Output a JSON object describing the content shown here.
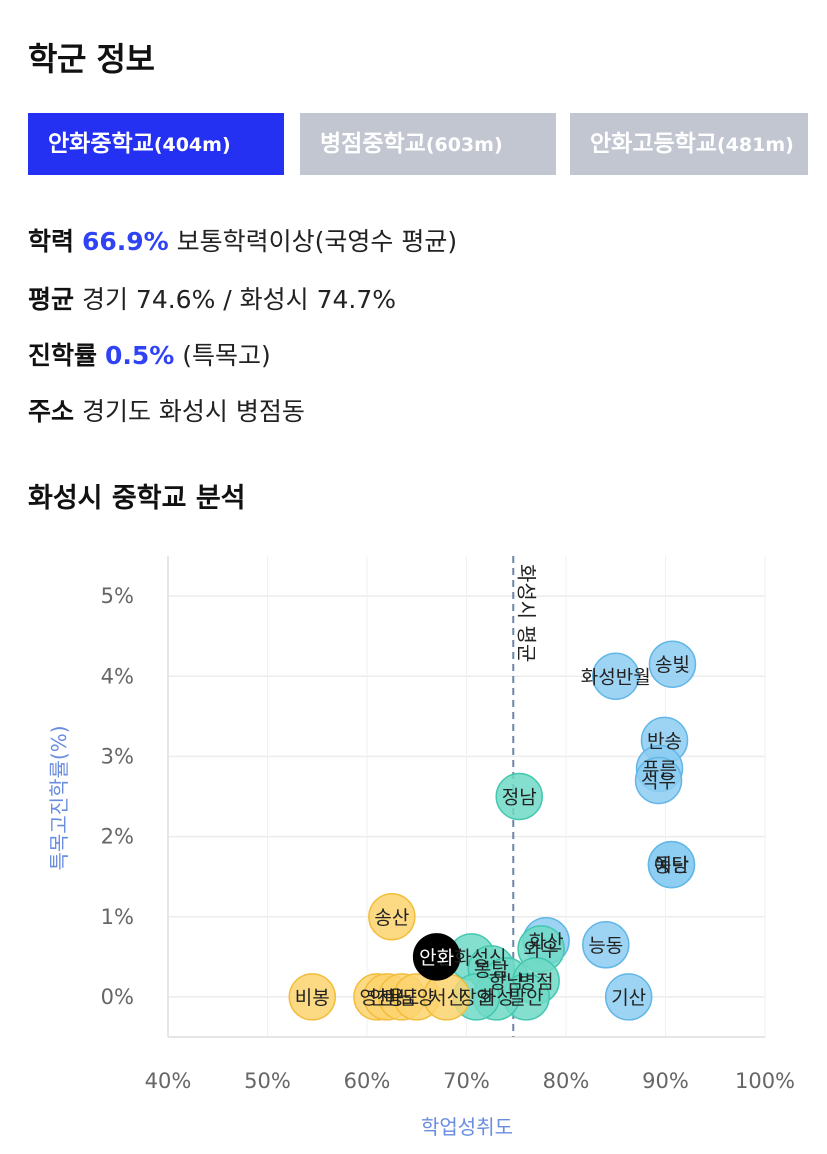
{
  "header": {
    "title": "학군 정보"
  },
  "tabs": [
    {
      "name": "안화중학교",
      "distance": "(404m)",
      "active": true
    },
    {
      "name": "병점중학교",
      "distance": "(603m)",
      "active": false
    },
    {
      "name": "안화고등학교",
      "distance": "(481m)",
      "active": false
    }
  ],
  "info": {
    "academic": {
      "label": "학력",
      "value": "66.9%",
      "suffix": "보통학력이상(국영수 평균)"
    },
    "average": {
      "label": "평균",
      "text": "경기 74.6% / 화성시 74.7%"
    },
    "advancement": {
      "label": "진학률",
      "value": "0.5%",
      "suffix": "(특목고)"
    },
    "address": {
      "label": "주소",
      "text": "경기도 화성시 병점동"
    }
  },
  "analysis": {
    "title": "화성시 중학교 분석"
  },
  "colors": {
    "accent": "#2430f2",
    "tab_inactive": "#c2c6d1",
    "highlight_text": "#2f43f5",
    "bubble_blue": "#8ccdf2",
    "bubble_teal": "#6fd9c6",
    "bubble_yellow": "#fcd46e",
    "bubble_selected": "#000000",
    "avg_line": "#6b86a6"
  },
  "chart_data": {
    "type": "scatter",
    "xlabel": "학업성취도",
    "ylabel": "특목고진학률(%)",
    "xlim": [
      40,
      100
    ],
    "ylim": [
      -0.5,
      5.5
    ],
    "xticks": [
      "40%",
      "50%",
      "60%",
      "70%",
      "80%",
      "90%",
      "100%"
    ],
    "yticks": [
      "0%",
      "1%",
      "2%",
      "3%",
      "4%",
      "5%"
    ],
    "grid": true,
    "reference_line": {
      "axis": "x",
      "value": 74.7,
      "label": "화성시 평균"
    },
    "points": [
      {
        "label": "송빛",
        "x": 90.7,
        "y": 4.15,
        "group": "blue"
      },
      {
        "label": "화성반월",
        "x": 85.0,
        "y": 4.0,
        "group": "blue"
      },
      {
        "label": "반송",
        "x": 89.9,
        "y": 3.2,
        "group": "blue"
      },
      {
        "label": "푸른",
        "x": 89.4,
        "y": 2.85,
        "group": "blue"
      },
      {
        "label": "석우",
        "x": 89.3,
        "y": 2.7,
        "group": "blue"
      },
      {
        "label": "동탄",
        "x": 90.6,
        "y": 1.65,
        "group": "blue"
      },
      {
        "label": "예당",
        "x": 90.6,
        "y": 1.65,
        "group": "blue"
      },
      {
        "label": "능동",
        "x": 84.0,
        "y": 0.65,
        "group": "blue"
      },
      {
        "label": "기산",
        "x": 86.3,
        "y": 0.0,
        "group": "blue"
      },
      {
        "label": "화산",
        "x": 78.0,
        "y": 0.7,
        "group": "blue"
      },
      {
        "label": "정남",
        "x": 75.3,
        "y": 2.5,
        "group": "teal"
      },
      {
        "label": "안화",
        "x": 67.0,
        "y": 0.5,
        "group": "selected"
      },
      {
        "label": "안화성신",
        "x": 70.5,
        "y": 0.5,
        "group": "teal"
      },
      {
        "label": "와우",
        "x": 77.5,
        "y": 0.6,
        "group": "teal"
      },
      {
        "label": "봉담",
        "x": 72.5,
        "y": 0.35,
        "group": "teal"
      },
      {
        "label": "향남",
        "x": 74.0,
        "y": 0.2,
        "group": "teal"
      },
      {
        "label": "병점",
        "x": 77.0,
        "y": 0.2,
        "group": "teal"
      },
      {
        "label": "발안",
        "x": 76.0,
        "y": 0.0,
        "group": "teal"
      },
      {
        "label": "화성",
        "x": 73.0,
        "y": 0.0,
        "group": "teal"
      },
      {
        "label": "장안",
        "x": 71.0,
        "y": 0.0,
        "group": "teal"
      },
      {
        "label": "송산",
        "x": 62.5,
        "y": 1.0,
        "group": "yellow"
      },
      {
        "label": "비봉",
        "x": 54.5,
        "y": 0.0,
        "group": "yellow"
      },
      {
        "label": "영천",
        "x": 61.0,
        "y": 0.0,
        "group": "yellow"
      },
      {
        "label": "안용",
        "x": 62.0,
        "y": 0.0,
        "group": "yellow"
      },
      {
        "label": "마도",
        "x": 63.5,
        "y": 0.0,
        "group": "yellow"
      },
      {
        "label": "남양",
        "x": 65.0,
        "y": 0.0,
        "group": "yellow"
      },
      {
        "label": "서신",
        "x": 68.0,
        "y": 0.0,
        "group": "yellow"
      }
    ]
  }
}
